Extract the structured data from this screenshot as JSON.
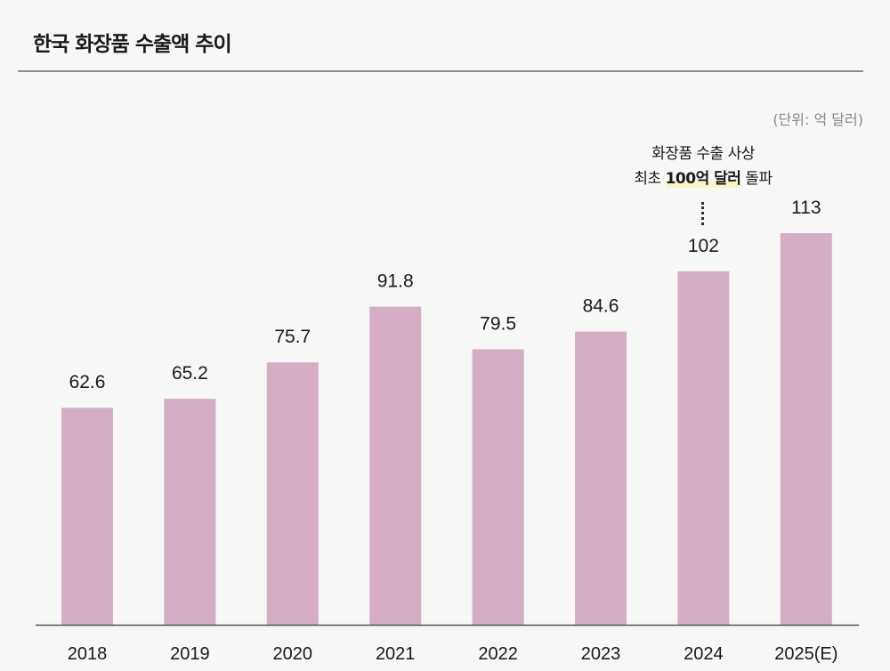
{
  "chart_data": {
    "type": "bar",
    "title": "한국 화장품 수출액 추이",
    "unit_label": "(단위: 억 달러)",
    "categories": [
      "2018",
      "2019",
      "2020",
      "2021",
      "2022",
      "2023",
      "2024",
      "2025(E)"
    ],
    "values": [
      62.6,
      65.2,
      75.7,
      91.8,
      79.5,
      84.6,
      102,
      113
    ],
    "value_labels": [
      "62.6",
      "65.2",
      "75.7",
      "91.8",
      "79.5",
      "84.6",
      "102",
      "113"
    ],
    "ylim": [
      0,
      113
    ],
    "grid": false,
    "bar_color": "#d5aec5",
    "annotation": {
      "category": "2024",
      "line1": "화장품 수출 사상",
      "line2_prefix": "최초 ",
      "line2_highlight": "100억 달러",
      "line2_suffix": " 돌파",
      "highlight_color": "#fbf3c8"
    }
  }
}
